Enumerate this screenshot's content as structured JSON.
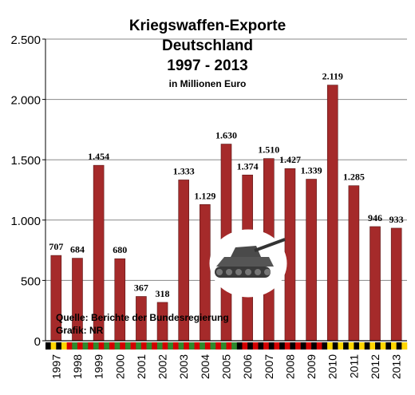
{
  "chart_data": {
    "type": "bar",
    "title": [
      "Kriegswaffen-Exporte",
      "Deutschland",
      "1997 - 2013"
    ],
    "subtitle": "in Millionen Euro",
    "categories": [
      "1997",
      "1998",
      "1999",
      "2000",
      "2001",
      "2002",
      "2003",
      "2004",
      "2005",
      "2006",
      "2007",
      "2008",
      "2009",
      "2010",
      "2011",
      "2012",
      "2013"
    ],
    "values": [
      707,
      684,
      1454,
      680,
      367,
      318,
      1333,
      1129,
      1630,
      1374,
      1510,
      1427,
      1339,
      2119,
      1285,
      946,
      933
    ],
    "value_labels": [
      "707",
      "684",
      "1.454",
      "680",
      "367",
      "318",
      "1.333",
      "1.129",
      "1.630",
      "1.374",
      "1.510",
      "1.427",
      "1.339",
      "2.119",
      "1.285",
      "946",
      "933"
    ],
    "ylim": [
      0,
      2500
    ],
    "yticks": [
      0,
      500,
      1000,
      1500,
      2000,
      2500
    ],
    "ytick_labels": [
      "0",
      "500",
      "1.000",
      "1.500",
      "2.000",
      "2.500"
    ],
    "grid": true,
    "xlabel": "",
    "ylabel": "",
    "bar_color": "#a52a2a",
    "flag_stripe_colors": {
      "black": "#000000",
      "red": "#d40000",
      "gold": "#ffd700",
      "green": "#2e8b2e",
      "white": "#ffffff"
    },
    "annotations": [
      "Quelle: Berichte der Bundesregierung",
      "Grafik: NR"
    ]
  }
}
